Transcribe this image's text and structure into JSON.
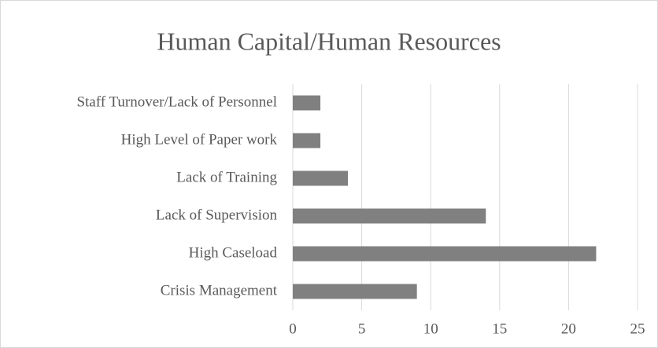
{
  "chart_data": {
    "type": "bar",
    "orientation": "horizontal",
    "title": "Human Capital/Human Resources",
    "categories": [
      "Staff Turnover/Lack of Personnel",
      "High Level of Paper work",
      "Lack of Training",
      "Lack of Supervision",
      "High Caseload",
      "Crisis Management"
    ],
    "values": [
      2,
      2,
      4,
      14,
      22,
      9
    ],
    "color": "#808080",
    "xlim": [
      0,
      25
    ],
    "xticks": [
      0,
      5,
      10,
      15,
      20,
      25
    ],
    "grid": true
  }
}
